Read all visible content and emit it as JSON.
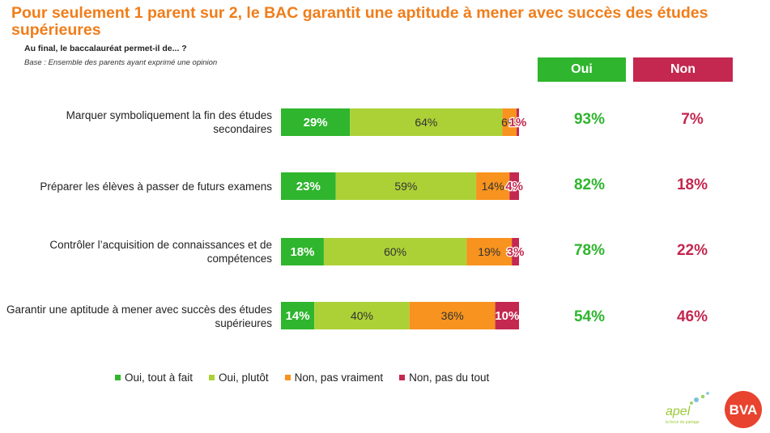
{
  "header": {
    "title": "Pour seulement 1 parent sur 2, le BAC garantit une aptitude à mener avec succès des études supérieures",
    "subtitle": "Au final, le baccalauréat permet-il de... ?",
    "base": "Base : Ensemble des parents ayant exprimé une opinion"
  },
  "totals_header": {
    "oui": "Oui",
    "non": "Non"
  },
  "colors": {
    "oui_tout": "#2fb52e",
    "oui_plutot": "#acd136",
    "non_pas_vraiment": "#f7931e",
    "non_pas_du_tout": "#c4274f",
    "title": "#f07d1a"
  },
  "chart_data": {
    "type": "bar",
    "orientation": "horizontal",
    "stacked": true,
    "xlim": [
      0,
      100
    ],
    "categories": [
      "Marquer symboliquement la fin des études secondaires",
      "Préparer les élèves à passer de futurs examens",
      "Contrôler l’acquisition de connaissances et de compétences",
      "Garantir une aptitude à mener avec succès des études supérieures"
    ],
    "series": [
      {
        "name": "Oui, tout à fait",
        "color": "#2fb52e",
        "values": [
          29,
          23,
          18,
          14
        ],
        "labels": [
          "29%",
          "23%",
          "18%",
          "14%"
        ]
      },
      {
        "name": "Oui, plutôt",
        "color": "#acd136",
        "values": [
          64,
          59,
          60,
          40
        ],
        "labels": [
          "64%",
          "59%",
          "60%",
          "40%"
        ]
      },
      {
        "name": "Non, pas vraiment",
        "color": "#f7931e",
        "values": [
          6,
          14,
          19,
          36
        ],
        "labels": [
          "6%",
          "14%",
          "19%",
          "36%"
        ]
      },
      {
        "name": "Non, pas du tout",
        "color": "#c4274f",
        "values": [
          1,
          4,
          3,
          10
        ],
        "labels": [
          "1%",
          "4%",
          "3%",
          "10%"
        ]
      }
    ],
    "totals": {
      "oui": [
        "93%",
        "82%",
        "78%",
        "54%"
      ],
      "non": [
        "7%",
        "18%",
        "22%",
        "46%"
      ]
    },
    "legend": [
      "Oui, tout à fait",
      "Oui, plutôt",
      "Non, pas vraiment",
      "Non, pas du tout"
    ],
    "legend_position": "bottom",
    "grid": false
  },
  "logos": {
    "apel": "apel",
    "apel_tagline": "la force du partage",
    "bva": "BVA"
  }
}
